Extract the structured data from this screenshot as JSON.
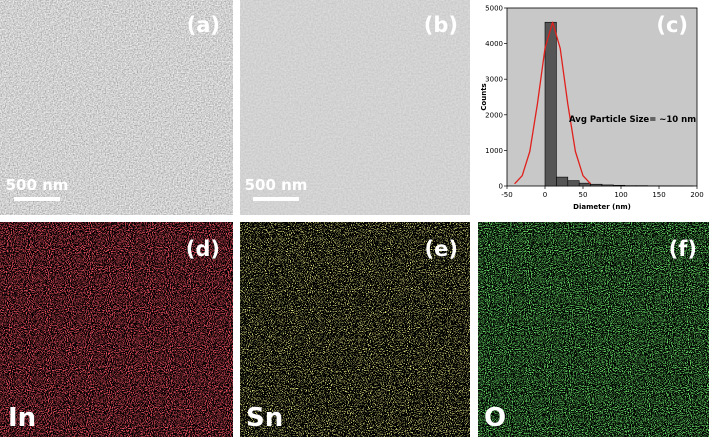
{
  "panels": [
    {
      "label": "(a)",
      "scale_bar": "500 nm"
    },
    {
      "label": "(b)",
      "scale_bar": "500 nm"
    },
    {
      "label": "(d)",
      "element": "In"
    },
    {
      "label": "(e)",
      "element": "Sn"
    },
    {
      "label": "(f)",
      "element": "O"
    }
  ],
  "chart_data": {
    "type": "histogram",
    "label": "(c)",
    "xlabel": "Diameter (nm)",
    "ylabel": "Counts",
    "annotation": "Avg Particle Size= ~10 nm",
    "bins": [
      0,
      15,
      30,
      45,
      60,
      75,
      90,
      105,
      120,
      135,
      150,
      165,
      180,
      195
    ],
    "values": [
      4600,
      250,
      150,
      80,
      50,
      30,
      20,
      10,
      10,
      5,
      5,
      3,
      2
    ],
    "color": "#555555",
    "fit": {
      "color": "#e0201c",
      "x": [
        -40,
        -30,
        -20,
        -10,
        0,
        10,
        20,
        30,
        40,
        50,
        60
      ],
      "values": [
        61,
        289,
        969,
        2304,
        3869,
        4600,
        3869,
        2304,
        969,
        289,
        61
      ]
    },
    "xlim": [
      -50,
      200
    ],
    "xticks": [
      -50,
      0,
      50,
      100,
      150,
      200
    ],
    "ylim": [
      0,
      5000
    ],
    "yticks": [
      0,
      1000,
      2000,
      3000,
      4000,
      5000
    ]
  }
}
